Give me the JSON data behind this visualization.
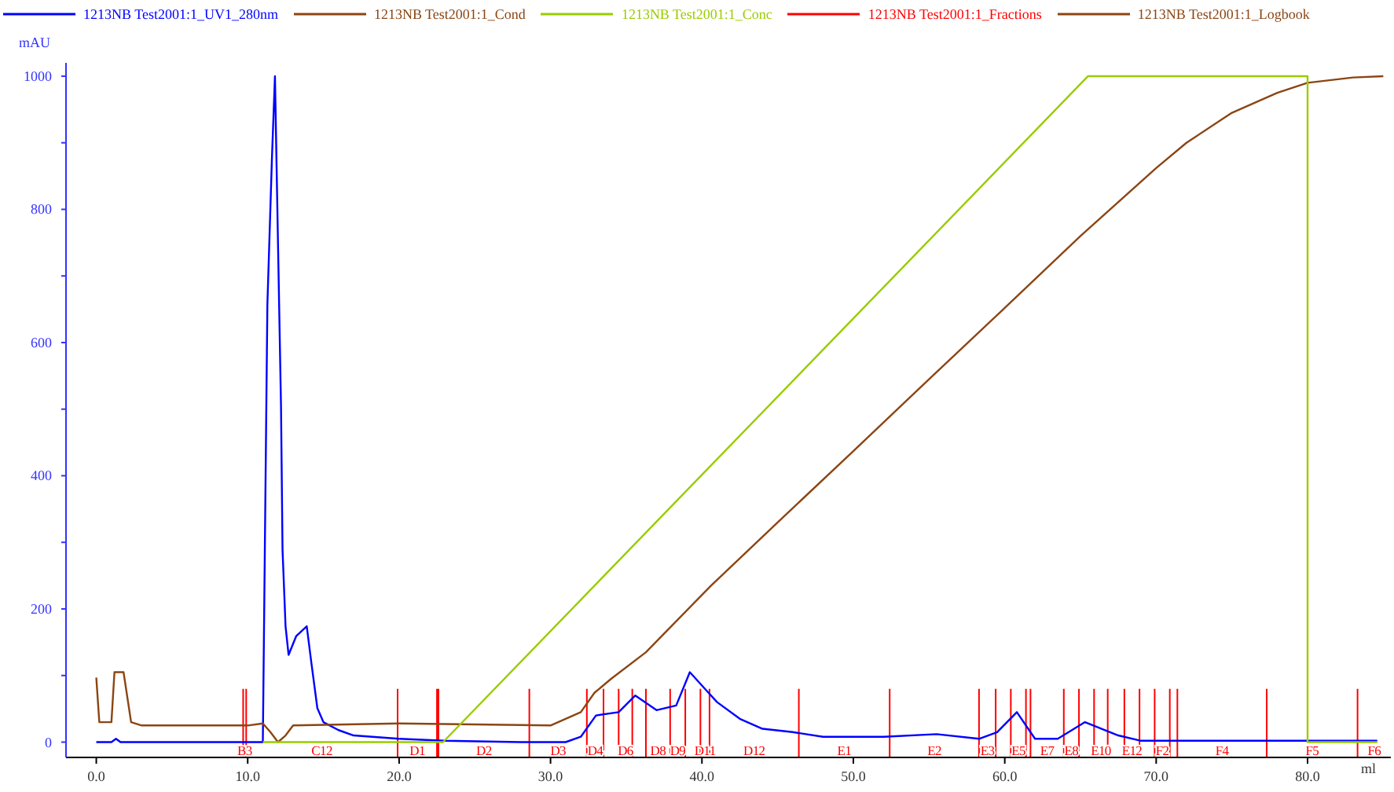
{
  "chart_data": {
    "type": "line",
    "ylabel": "mAU",
    "xlabel": "ml",
    "xlim": [
      -2,
      85.5
    ],
    "ylim": [
      -23,
      1020
    ],
    "xticks": [
      {
        "value": 0,
        "label": "0.0"
      },
      {
        "value": 10,
        "label": "10.0"
      },
      {
        "value": 20,
        "label": "20.0"
      },
      {
        "value": 30,
        "label": "30.0"
      },
      {
        "value": 40,
        "label": "40.0"
      },
      {
        "value": 50,
        "label": "50.0"
      },
      {
        "value": 60,
        "label": "60.0"
      },
      {
        "value": 70,
        "label": "70.0"
      },
      {
        "value": 80,
        "label": "80.0"
      }
    ],
    "yticks": [
      0,
      {
        "value": 100,
        "label": null
      },
      200,
      {
        "value": 300,
        "label": null
      },
      400,
      {
        "value": 500,
        "label": null
      },
      600,
      {
        "value": 700,
        "label": null
      },
      800,
      {
        "value": 900,
        "label": null
      },
      1000
    ],
    "legend": "top",
    "grid": false,
    "marker": "none",
    "line_style": "solid",
    "series": [
      {
        "name": "1213NB Test2001:1_UV1_280nm",
        "color": "#0000ff",
        "type": "line",
        "x": [
          0,
          1,
          1.3,
          1.6,
          2,
          5,
          9,
          11,
          11.3,
          11.6,
          11.8,
          12,
          12.2,
          12.3,
          12.5,
          12.7,
          13.2,
          13.9,
          14.2,
          14.6,
          15,
          16,
          17,
          20,
          23,
          28,
          31,
          32,
          33,
          34.5,
          35.6,
          37,
          38.3,
          39.2,
          40.2,
          41,
          42.5,
          44,
          46,
          48,
          52,
          55.5,
          58.3,
          59.5,
          60.8,
          62,
          63.5,
          65.3,
          67.5,
          69,
          72,
          76,
          84.6
        ],
        "values": [
          0,
          0,
          5,
          0,
          0,
          0,
          0,
          0,
          657,
          876,
          1000,
          750,
          504,
          289,
          174,
          131,
          159,
          174,
          120,
          51,
          30,
          18,
          10,
          5,
          2,
          0,
          0,
          8,
          40,
          45,
          70,
          48,
          55,
          105,
          80,
          60,
          35,
          20,
          15,
          8,
          8,
          12,
          5,
          15,
          45,
          5,
          5,
          30,
          10,
          2,
          2,
          2,
          2
        ]
      },
      {
        "name": "1213NB Test2001:1_Cond",
        "color": "#8b4513",
        "x": [
          0,
          0.2,
          1,
          1.2,
          1.8,
          2.3,
          3,
          10,
          11,
          11.5,
          12,
          12.5,
          13,
          20,
          30,
          30.5,
          32,
          32.9,
          34,
          36.3,
          40.6,
          45,
          50,
          55,
          60,
          65,
          70,
          72,
          75,
          78,
          80,
          83,
          85
        ],
        "values": [
          97,
          30,
          30,
          105,
          105,
          30,
          25,
          25,
          28,
          15,
          0,
          10,
          25,
          28,
          25,
          30,
          45,
          74,
          95,
          135,
          235,
          330,
          437,
          545,
          652,
          760,
          862,
          900,
          945,
          975,
          990,
          998,
          1000
        ]
      },
      {
        "name": "1213NB Test2001:1_Conc",
        "color": "#99cc00",
        "x": [
          11,
          22.9,
          65.5,
          80,
          80,
          84.6
        ],
        "values": [
          0,
          0,
          1000,
          1000,
          0,
          0
        ]
      },
      {
        "name": "1213NB Test2001:1_Fractions",
        "color": "#ff0000",
        "type": "other"
      },
      {
        "name": "1213NB Test2001:1_Logbook",
        "color": "#8b4513",
        "type": "other"
      }
    ],
    "ref_lines": [
      {
        "axis": "x",
        "value": 9.7,
        "color": "#ff0000",
        "label": "B3"
      },
      {
        "axis": "x",
        "value": 9.9,
        "color": "#ff0000",
        "label": "C12"
      },
      {
        "axis": "x",
        "value": 19.9,
        "color": "#ff0000",
        "label": "D1"
      },
      {
        "axis": "x",
        "value": 22.5,
        "color": "#ff0000"
      },
      {
        "axis": "x",
        "value": 22.6,
        "color": "#ff0000",
        "label": "D2"
      },
      {
        "axis": "x",
        "value": 28.6,
        "color": "#ff0000",
        "label": "D3"
      },
      {
        "axis": "x",
        "value": 32.4,
        "color": "#ff0000",
        "label": "D4"
      },
      {
        "axis": "x",
        "value": 33.5,
        "color": "#ff0000"
      },
      {
        "axis": "x",
        "value": 34.5,
        "color": "#ff0000",
        "label": "D6"
      },
      {
        "axis": "x",
        "value": 35.4,
        "color": "#ff0000"
      },
      {
        "axis": "x",
        "value": 36.3,
        "color": "#ff0000",
        "label": "D8"
      },
      {
        "axis": "x",
        "value": 37.9,
        "color": "#ff0000",
        "label": "D9"
      },
      {
        "axis": "x",
        "value": 38.9,
        "color": "#ff0000"
      },
      {
        "axis": "x",
        "value": 39.9,
        "color": "#ff0000",
        "label": "D11"
      },
      {
        "axis": "x",
        "value": 40.5,
        "color": "#ff0000",
        "label": "D12"
      },
      {
        "axis": "x",
        "value": 46.4,
        "color": "#ff0000",
        "label": "E1"
      },
      {
        "axis": "x",
        "value": 52.4,
        "color": "#ff0000",
        "label": "E2"
      },
      {
        "axis": "x",
        "value": 58.3,
        "color": "#ff0000",
        "label": "E3"
      },
      {
        "axis": "x",
        "value": 59.4,
        "color": "#ff0000"
      },
      {
        "axis": "x",
        "value": 60.4,
        "color": "#ff0000",
        "label": "E5"
      },
      {
        "axis": "x",
        "value": 61.4,
        "color": "#ff0000"
      },
      {
        "axis": "x",
        "value": 61.7,
        "color": "#ff0000",
        "label": "E7"
      },
      {
        "axis": "x",
        "value": 63.9,
        "color": "#ff0000",
        "label": "E8"
      },
      {
        "axis": "x",
        "value": 64.9,
        "color": "#ff0000"
      },
      {
        "axis": "x",
        "value": 65.9,
        "color": "#ff0000",
        "label": "E10"
      },
      {
        "axis": "x",
        "value": 66.8,
        "color": "#ff0000"
      },
      {
        "axis": "x",
        "value": 67.9,
        "color": "#ff0000",
        "label": "E12"
      },
      {
        "axis": "x",
        "value": 68.9,
        "color": "#ff0000"
      },
      {
        "axis": "x",
        "value": 69.9,
        "color": "#ff0000",
        "label": "F2"
      },
      {
        "axis": "x",
        "value": 70.9,
        "color": "#ff0000"
      },
      {
        "axis": "x",
        "value": 71.4,
        "color": "#ff0000",
        "label": "F4"
      },
      {
        "axis": "x",
        "value": 77.3,
        "color": "#ff0000",
        "label": "F5"
      },
      {
        "axis": "x",
        "value": 83.3,
        "color": "#ff0000",
        "label": "F6"
      }
    ]
  }
}
